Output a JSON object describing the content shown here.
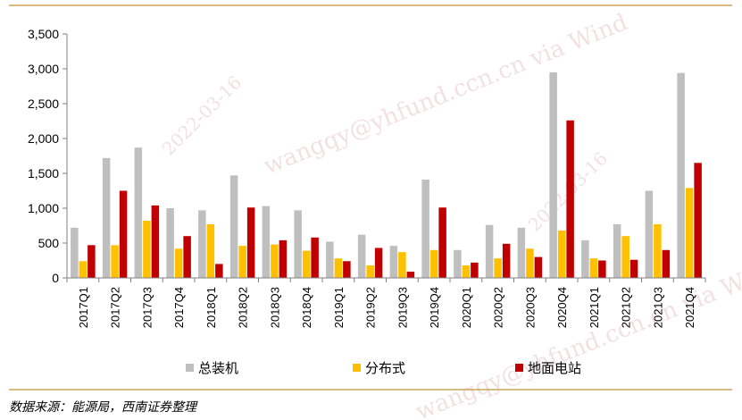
{
  "chart_data": {
    "type": "bar",
    "categories": [
      "2017Q1",
      "2017Q2",
      "2017Q3",
      "2017Q4",
      "2018Q1",
      "2018Q2",
      "2018Q3",
      "2018Q4",
      "2019Q1",
      "2019Q2",
      "2019Q3",
      "2019Q4",
      "2020Q1",
      "2020Q2",
      "2020Q3",
      "2020Q4",
      "2021Q1",
      "2021Q2",
      "2021Q3",
      "2021Q4"
    ],
    "series": [
      {
        "name": "总装机",
        "color": "#bfbfbf",
        "values": [
          720,
          1720,
          1870,
          1000,
          970,
          1470,
          1030,
          970,
          520,
          620,
          460,
          1410,
          400,
          760,
          720,
          2950,
          540,
          770,
          1250,
          2940
        ]
      },
      {
        "name": "分布式",
        "color": "#ffc000",
        "values": [
          240,
          470,
          820,
          420,
          770,
          460,
          480,
          390,
          280,
          180,
          370,
          400,
          180,
          280,
          420,
          680,
          280,
          600,
          770,
          1290
        ]
      },
      {
        "name": "地面电站",
        "color": "#c00000",
        "values": [
          470,
          1250,
          1040,
          600,
          200,
          1010,
          540,
          580,
          240,
          430,
          90,
          1010,
          220,
          490,
          300,
          2260,
          250,
          260,
          400,
          1650
        ]
      }
    ],
    "ylim": [
      0,
      3500
    ],
    "yticks": [
      "0",
      "500",
      "1,000",
      "1,500",
      "2,000",
      "2,500",
      "3,000",
      "3,500"
    ],
    "ytick_values": [
      0,
      500,
      1000,
      1500,
      2000,
      2500,
      3000,
      3500
    ],
    "legend_position": "bottom",
    "grid": false
  },
  "watermark": {
    "text1": "wangqy@yhfund.ccn.cn via Wind",
    "text2": "2022-03-16",
    "text3": "wangqy@yhfund.ccn.cn via Wind"
  },
  "source": "数据来源：能源局，西南证券整理"
}
